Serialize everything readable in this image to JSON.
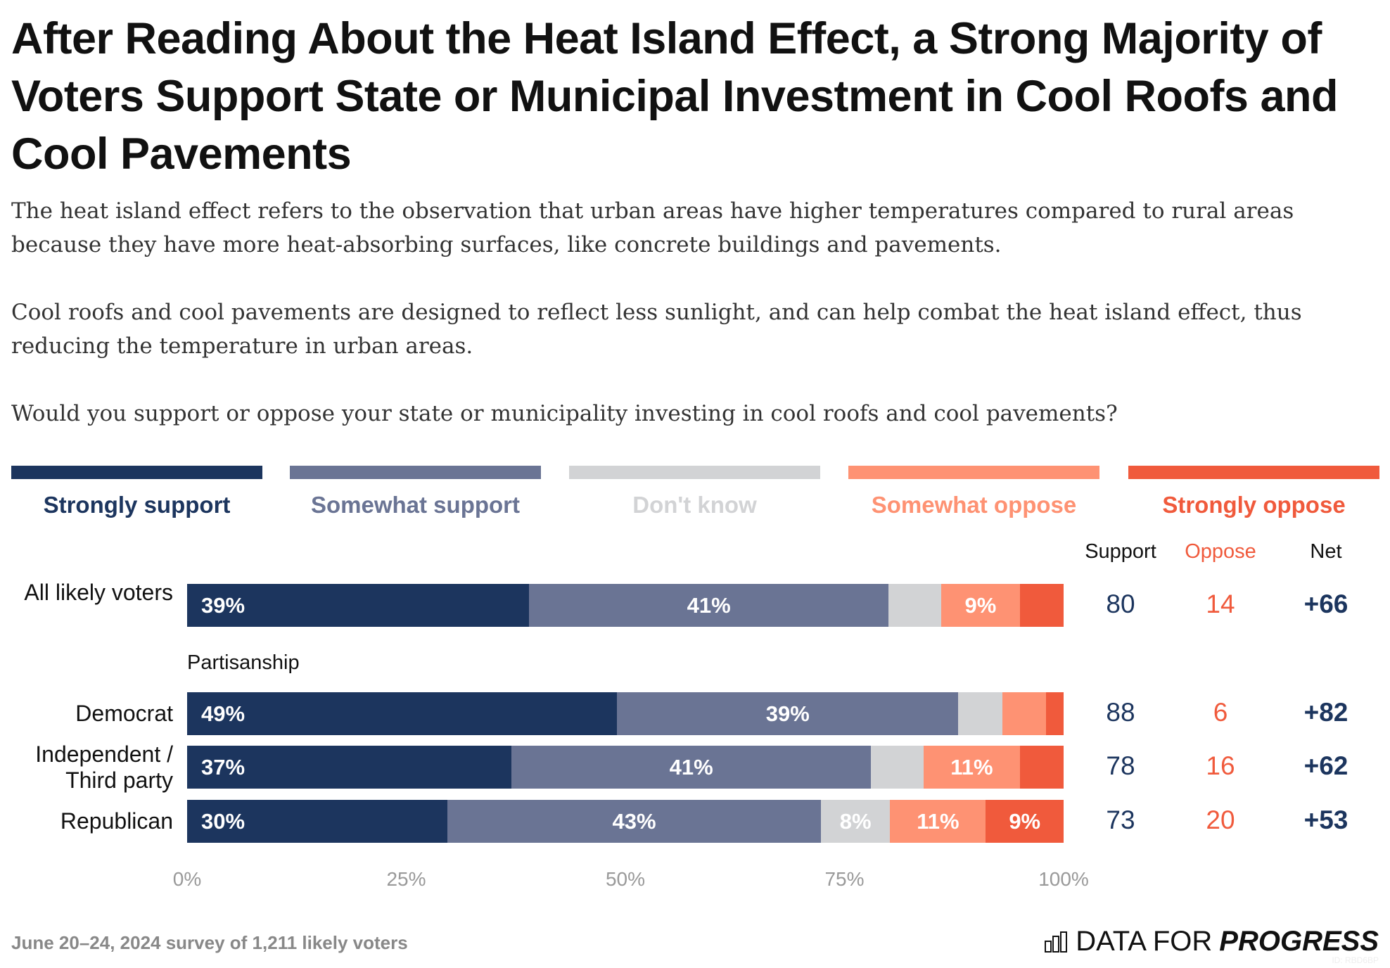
{
  "title": "After Reading About the Heat Island Effect, a Strong Majority of Voters Support State or Municipal Investment in Cool Roofs and Cool Pavements",
  "subtitle": [
    "The heat island effect refers to the observation that urban areas have higher temperatures compared to rural areas because they have more heat-absorbing surfaces, like concrete buildings and pavements.",
    "Cool roofs and cool pavements are designed to reflect less sunlight, and can help combat the heat island effect, thus reducing the temperature in urban areas.",
    "Would you support or oppose your state or municipality investing in cool roofs and cool pavements?"
  ],
  "footer": "June 20–24, 2024 survey of 1,211 likely voters",
  "logo": {
    "text_light": "DATA FOR",
    "text_bold": "PROGRESS",
    "id": "ID: RBD6BP",
    "icon": "bar-chart-icon"
  },
  "chart_data": {
    "type": "bar",
    "orientation": "horizontal-stacked-100",
    "series": [
      {
        "name": "Strongly support",
        "color": "#1c355e",
        "label_color": "#1c355e"
      },
      {
        "name": "Somewhat support",
        "color": "#6a7494",
        "label_color": "#6a7494"
      },
      {
        "name": "Don't know",
        "color": "#d2d3d5",
        "label_color": "#d2d3d5"
      },
      {
        "name": "Somewhat oppose",
        "color": "#fe9273",
        "label_color": "#fe9273"
      },
      {
        "name": "Strongly oppose",
        "color": "#f05a3c",
        "label_color": "#f05a3c"
      }
    ],
    "group_label": "Partisanship",
    "rows": [
      {
        "label": "All likely voters",
        "values": [
          39,
          41,
          6,
          9,
          5
        ],
        "labels": [
          "39%",
          "41%",
          "",
          "9%",
          ""
        ],
        "support": "80",
        "oppose": "14",
        "net": "+66"
      },
      {
        "label": "Democrat",
        "values": [
          49,
          39,
          5,
          5,
          2
        ],
        "labels": [
          "49%",
          "39%",
          "",
          "",
          ""
        ],
        "support": "88",
        "oppose": "6",
        "net": "+82"
      },
      {
        "label": "Independent / Third party",
        "values": [
          37,
          41,
          6,
          11,
          5
        ],
        "labels": [
          "37%",
          "41%",
          "",
          "11%",
          ""
        ],
        "support": "78",
        "oppose": "16",
        "net": "+62"
      },
      {
        "label": "Republican",
        "values": [
          30,
          43,
          8,
          11,
          9
        ],
        "labels": [
          "30%",
          "43%",
          "8%",
          "11%",
          "9%"
        ],
        "support": "73",
        "oppose": "20",
        "net": "+53"
      }
    ],
    "columns": {
      "support": "Support",
      "oppose": "Oppose",
      "net": "Net"
    },
    "column_colors": {
      "support": "#1c355e",
      "oppose": "#f05a3c",
      "net": "#1c355e"
    },
    "x_ticks": [
      "0%",
      "25%",
      "50%",
      "75%",
      "100%"
    ],
    "xlim": [
      0,
      100
    ]
  }
}
